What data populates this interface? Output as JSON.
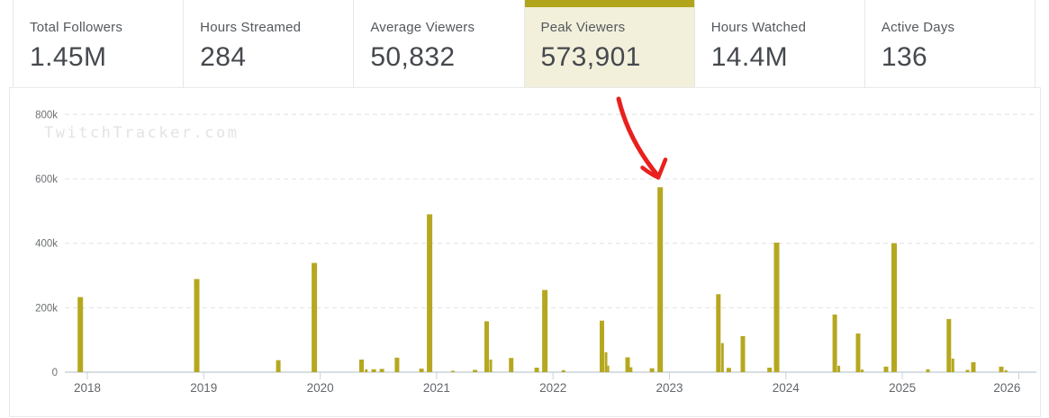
{
  "watermark": "TwitchTracker.com",
  "stats": {
    "cards": [
      {
        "label": "Total Followers",
        "value": "1.45M",
        "selected": false
      },
      {
        "label": "Hours Streamed",
        "value": "284",
        "selected": false
      },
      {
        "label": "Average Viewers",
        "value": "50,832",
        "selected": false
      },
      {
        "label": "Peak Viewers",
        "value": "573,901",
        "selected": true
      },
      {
        "label": "Hours Watched",
        "value": "14.4M",
        "selected": false
      },
      {
        "label": "Active Days",
        "value": "136",
        "selected": false
      }
    ]
  },
  "colors": {
    "bar": "#b5a820",
    "selected_accent": "#b1a51b",
    "selected_bg": "#f2f0db",
    "arrow": "#e9201e",
    "grid": "#e0e0e0",
    "axis_line": "#c9d3da",
    "axis_text": "#63676b",
    "y_text": "#6d7073"
  },
  "chart_data": {
    "type": "bar",
    "series_name": "Peak Viewers",
    "grid": "horizontal-dashed",
    "legend": "none",
    "y_axis": {
      "range": [
        0,
        800000
      ],
      "ticks": [
        {
          "value": 0,
          "label": "0"
        },
        {
          "value": 200000,
          "label": "200k"
        },
        {
          "value": 400000,
          "label": "400k"
        },
        {
          "value": 600000,
          "label": "600k"
        },
        {
          "value": 800000,
          "label": "800k"
        }
      ]
    },
    "x_axis": {
      "ticks": [
        "2018",
        "2019",
        "2020",
        "2021",
        "2022",
        "2023",
        "2024",
        "2025",
        "2026"
      ]
    },
    "bars": [
      {
        "t": 2017.94,
        "value": 233000,
        "w": 6
      },
      {
        "t": 2018.94,
        "value": 289000,
        "w": 6
      },
      {
        "t": 2019.64,
        "value": 37000,
        "w": 5
      },
      {
        "t": 2019.95,
        "value": 339000,
        "w": 6
      },
      {
        "t": 2020.355,
        "value": 39000,
        "w": 5
      },
      {
        "t": 2020.395,
        "value": 9000,
        "w": 3
      },
      {
        "t": 2020.46,
        "value": 9000,
        "w": 5
      },
      {
        "t": 2020.53,
        "value": 10000,
        "w": 5
      },
      {
        "t": 2020.66,
        "value": 45000,
        "w": 5
      },
      {
        "t": 2020.87,
        "value": 11000,
        "w": 5
      },
      {
        "t": 2020.94,
        "value": 490000,
        "w": 6
      },
      {
        "t": 2021.14,
        "value": 4000,
        "w": 4
      },
      {
        "t": 2021.33,
        "value": 7000,
        "w": 5
      },
      {
        "t": 2021.43,
        "value": 158000,
        "w": 5
      },
      {
        "t": 2021.465,
        "value": 39000,
        "w": 3
      },
      {
        "t": 2021.64,
        "value": 44000,
        "w": 5
      },
      {
        "t": 2021.86,
        "value": 14000,
        "w": 5
      },
      {
        "t": 2021.93,
        "value": 255000,
        "w": 6
      },
      {
        "t": 2022.09,
        "value": 6000,
        "w": 4
      },
      {
        "t": 2022.42,
        "value": 160000,
        "w": 5
      },
      {
        "t": 2022.455,
        "value": 62000,
        "w": 3
      },
      {
        "t": 2022.475,
        "value": 20000,
        "w": 2
      },
      {
        "t": 2022.64,
        "value": 46000,
        "w": 5
      },
      {
        "t": 2022.67,
        "value": 15000,
        "w": 3
      },
      {
        "t": 2022.85,
        "value": 12000,
        "w": 5
      },
      {
        "t": 2022.92,
        "value": 573901,
        "w": 6
      },
      {
        "t": 2023.42,
        "value": 242000,
        "w": 5
      },
      {
        "t": 2023.455,
        "value": 90000,
        "w": 3
      },
      {
        "t": 2023.51,
        "value": 13000,
        "w": 5
      },
      {
        "t": 2023.63,
        "value": 112000,
        "w": 5
      },
      {
        "t": 2023.86,
        "value": 14000,
        "w": 5
      },
      {
        "t": 2023.92,
        "value": 402000,
        "w": 6
      },
      {
        "t": 2024.42,
        "value": 179000,
        "w": 5
      },
      {
        "t": 2024.455,
        "value": 20000,
        "w": 3
      },
      {
        "t": 2024.62,
        "value": 120000,
        "w": 5
      },
      {
        "t": 2024.655,
        "value": 8000,
        "w": 3
      },
      {
        "t": 2024.86,
        "value": 17000,
        "w": 5
      },
      {
        "t": 2024.93,
        "value": 400000,
        "w": 6
      },
      {
        "t": 2025.22,
        "value": 9000,
        "w": 4
      },
      {
        "t": 2025.4,
        "value": 165000,
        "w": 5
      },
      {
        "t": 2025.435,
        "value": 42000,
        "w": 3
      },
      {
        "t": 2025.56,
        "value": 7000,
        "w": 4
      },
      {
        "t": 2025.61,
        "value": 31000,
        "w": 5
      },
      {
        "t": 2025.85,
        "value": 17000,
        "w": 5
      },
      {
        "t": 2025.89,
        "value": 6000,
        "w": 3
      }
    ],
    "annotation": {
      "type": "arrow",
      "points_to_value": 573901,
      "points_to_t": 2022.92
    }
  }
}
